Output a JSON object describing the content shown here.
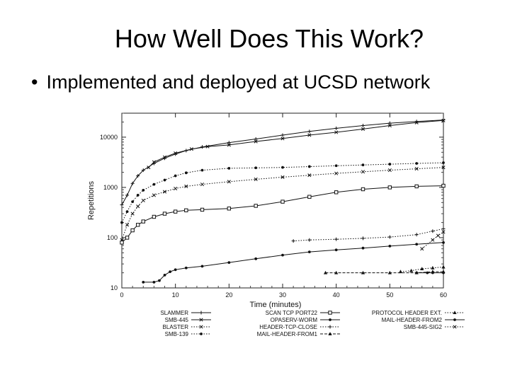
{
  "slide": {
    "title": "How Well Does This Work?",
    "bullet": "Implemented and deployed at UCSD network"
  },
  "chart_data": {
    "type": "line",
    "xlabel": "Time (minutes)",
    "ylabel": "Repetitions",
    "xlim": [
      0,
      60
    ],
    "ylim": [
      10,
      30000
    ],
    "yscale": "log",
    "x_ticks": [
      0,
      10,
      20,
      30,
      40,
      50,
      60
    ],
    "y_ticks": [
      {
        "value": 10,
        "label": "10"
      },
      {
        "value": 100,
        "label": "100"
      },
      {
        "value": 1000,
        "label": "1000"
      },
      {
        "value": 10000,
        "label": "10000"
      }
    ],
    "legend_position": "bottom",
    "series": [
      {
        "name": "SLAMMER",
        "marker": "plus",
        "dash": "none",
        "points": [
          [
            0,
            450
          ],
          [
            1,
            700
          ],
          [
            2,
            1200
          ],
          [
            3,
            1700
          ],
          [
            4,
            2200
          ],
          [
            6,
            3000
          ],
          [
            8,
            3800
          ],
          [
            10,
            4600
          ],
          [
            12,
            5400
          ],
          [
            15,
            6400
          ],
          [
            20,
            7800
          ],
          [
            25,
            9200
          ],
          [
            30,
            11000
          ],
          [
            35,
            13000
          ],
          [
            40,
            15000
          ],
          [
            45,
            17000
          ],
          [
            50,
            19000
          ],
          [
            55,
            20500
          ],
          [
            60,
            22000
          ]
        ]
      },
      {
        "name": "SMB-445",
        "marker": "x",
        "dash": "none",
        "points": [
          [
            5,
            2500
          ],
          [
            6,
            3200
          ],
          [
            8,
            4000
          ],
          [
            10,
            4800
          ],
          [
            13,
            5800
          ],
          [
            16,
            6500
          ],
          [
            20,
            7000
          ],
          [
            25,
            8200
          ],
          [
            30,
            9400
          ],
          [
            35,
            11000
          ],
          [
            40,
            12500
          ],
          [
            45,
            14500
          ],
          [
            50,
            17000
          ],
          [
            55,
            19500
          ],
          [
            60,
            21500
          ]
        ]
      },
      {
        "name": "BLASTER",
        "marker": "x",
        "dash": "dots",
        "points": [
          [
            0,
            90
          ],
          [
            1,
            180
          ],
          [
            2,
            300
          ],
          [
            3,
            420
          ],
          [
            4,
            550
          ],
          [
            6,
            700
          ],
          [
            8,
            820
          ],
          [
            10,
            950
          ],
          [
            12,
            1050
          ],
          [
            15,
            1150
          ],
          [
            20,
            1300
          ],
          [
            25,
            1450
          ],
          [
            30,
            1600
          ],
          [
            35,
            1750
          ],
          [
            40,
            1900
          ],
          [
            45,
            2050
          ],
          [
            50,
            2200
          ],
          [
            55,
            2350
          ],
          [
            60,
            2500
          ]
        ]
      },
      {
        "name": "SMB-139",
        "marker": "dot",
        "dash": "dots",
        "points": [
          [
            0,
            200
          ],
          [
            1,
            330
          ],
          [
            2,
            520
          ],
          [
            3,
            700
          ],
          [
            4,
            880
          ],
          [
            6,
            1150
          ],
          [
            8,
            1400
          ],
          [
            10,
            1700
          ],
          [
            12,
            1950
          ],
          [
            15,
            2200
          ],
          [
            20,
            2400
          ],
          [
            25,
            2450
          ],
          [
            30,
            2500
          ],
          [
            35,
            2600
          ],
          [
            40,
            2700
          ],
          [
            45,
            2800
          ],
          [
            50,
            2900
          ],
          [
            55,
            3000
          ],
          [
            60,
            3100
          ]
        ]
      },
      {
        "name": "SCAN TCP PORT22",
        "marker": "square",
        "dash": "none",
        "points": [
          [
            0,
            80
          ],
          [
            1,
            100
          ],
          [
            2,
            140
          ],
          [
            3,
            180
          ],
          [
            4,
            210
          ],
          [
            6,
            260
          ],
          [
            8,
            300
          ],
          [
            10,
            330
          ],
          [
            12,
            350
          ],
          [
            15,
            360
          ],
          [
            20,
            380
          ],
          [
            25,
            430
          ],
          [
            30,
            520
          ],
          [
            35,
            650
          ],
          [
            40,
            800
          ],
          [
            45,
            920
          ],
          [
            50,
            1000
          ],
          [
            55,
            1050
          ],
          [
            60,
            1080
          ]
        ]
      },
      {
        "name": "OPASERV-WORM",
        "marker": "dot",
        "dash": "none",
        "points": [
          [
            4,
            13
          ],
          [
            6,
            13
          ],
          [
            7,
            14
          ],
          [
            8,
            18
          ],
          [
            9,
            21
          ],
          [
            10,
            23
          ],
          [
            12,
            25
          ],
          [
            15,
            27
          ],
          [
            20,
            32
          ],
          [
            25,
            38
          ],
          [
            30,
            45
          ],
          [
            35,
            52
          ],
          [
            40,
            57
          ],
          [
            45,
            62
          ],
          [
            50,
            68
          ],
          [
            55,
            74
          ],
          [
            60,
            80
          ]
        ]
      },
      {
        "name": "HEADER-TCP-CLOSE",
        "marker": "plus",
        "dash": "dots",
        "points": [
          [
            32,
            86
          ],
          [
            35,
            90
          ],
          [
            40,
            93
          ],
          [
            45,
            97
          ],
          [
            50,
            103
          ],
          [
            55,
            115
          ],
          [
            58,
            135
          ],
          [
            60,
            150
          ]
        ]
      },
      {
        "name": "MAIL-HEADER-FROM1",
        "marker": "triangle",
        "dash": "dashes",
        "points": [
          [
            38,
            20
          ],
          [
            40,
            20
          ],
          [
            45,
            20
          ],
          [
            50,
            20
          ],
          [
            55,
            20
          ],
          [
            58,
            21
          ],
          [
            60,
            21
          ]
        ]
      },
      {
        "name": "PROTOCOL HEADER EXT.",
        "marker": "triangle",
        "dash": "dots",
        "points": [
          [
            52,
            21
          ],
          [
            54,
            22
          ],
          [
            56,
            24
          ],
          [
            58,
            25
          ],
          [
            60,
            26
          ]
        ]
      },
      {
        "name": "MAIL-HEADER-FROM2",
        "marker": "dot",
        "dash": "none",
        "points": [
          [
            55,
            20
          ],
          [
            57,
            20
          ],
          [
            58,
            20
          ],
          [
            60,
            20
          ]
        ]
      },
      {
        "name": "SMB-445-SIG2",
        "marker": "x",
        "dash": "dots",
        "points": [
          [
            56,
            60
          ],
          [
            58,
            90
          ],
          [
            59,
            110
          ],
          [
            60,
            130
          ]
        ]
      }
    ]
  }
}
